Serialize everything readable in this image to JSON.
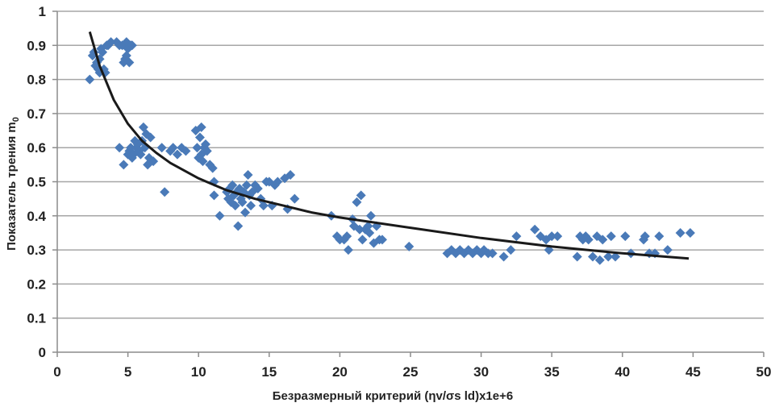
{
  "chart_data": {
    "type": "scatter",
    "title": "",
    "xlabel": "Безразмерный критерий  (ηv/σs ld)x1e+6",
    "ylabel": "Показатель трения m",
    "ylabel_subscript": "0",
    "xlim": [
      0,
      50
    ],
    "ylim": [
      0,
      1
    ],
    "x_ticks": [
      0,
      5,
      10,
      15,
      20,
      25,
      30,
      35,
      40,
      45,
      50
    ],
    "y_ticks": [
      0,
      0.1,
      0.2,
      0.3,
      0.4,
      0.5,
      0.6,
      0.7,
      0.8,
      0.9,
      1
    ],
    "y_tick_labels": [
      "0",
      "0.1",
      "0.2",
      "0.3",
      "0.4",
      "0.5",
      "0.6",
      "0.7",
      "0.8",
      "0.9",
      "1"
    ],
    "x_tick_labels": [
      "0",
      "5",
      "10",
      "15",
      "20",
      "25",
      "30",
      "35",
      "40",
      "45",
      "50"
    ],
    "grid": "horizontal",
    "legend": "none",
    "colors": {
      "marker": "#4a7ab8",
      "trend": "#1a1a1a",
      "grid": "#a6a6a6",
      "axis": "#8c8c8c"
    },
    "series": [
      {
        "name": "data",
        "marker": "diamond",
        "points": [
          [
            2.3,
            0.8
          ],
          [
            2.5,
            0.87
          ],
          [
            2.6,
            0.88
          ],
          [
            2.7,
            0.84
          ],
          [
            2.8,
            0.85
          ],
          [
            2.9,
            0.83
          ],
          [
            3.0,
            0.86
          ],
          [
            3.0,
            0.82
          ],
          [
            3.1,
            0.89
          ],
          [
            3.2,
            0.88
          ],
          [
            3.3,
            0.83
          ],
          [
            3.4,
            0.82
          ],
          [
            3.5,
            0.9
          ],
          [
            3.6,
            0.9
          ],
          [
            3.8,
            0.91
          ],
          [
            4.2,
            0.91
          ],
          [
            4.4,
            0.9
          ],
          [
            4.6,
            0.9
          ],
          [
            4.7,
            0.85
          ],
          [
            4.8,
            0.86
          ],
          [
            4.9,
            0.91
          ],
          [
            5.0,
            0.89
          ],
          [
            5.1,
            0.85
          ],
          [
            5.2,
            0.9
          ],
          [
            5.3,
            0.9
          ],
          [
            4.9,
            0.87
          ],
          [
            4.4,
            0.6
          ],
          [
            4.7,
            0.55
          ],
          [
            5.0,
            0.58
          ],
          [
            5.1,
            0.59
          ],
          [
            5.3,
            0.57
          ],
          [
            5.4,
            0.58
          ],
          [
            5.6,
            0.6
          ],
          [
            5.7,
            0.61
          ],
          [
            5.8,
            0.59
          ],
          [
            5.9,
            0.58
          ],
          [
            6.0,
            0.62
          ],
          [
            6.1,
            0.66
          ],
          [
            6.2,
            0.6
          ],
          [
            6.3,
            0.64
          ],
          [
            6.4,
            0.55
          ],
          [
            6.5,
            0.57
          ],
          [
            6.6,
            0.63
          ],
          [
            6.8,
            0.56
          ],
          [
            5.5,
            0.62
          ],
          [
            5.2,
            0.6
          ],
          [
            7.6,
            0.47
          ],
          [
            7.4,
            0.6
          ],
          [
            8.0,
            0.59
          ],
          [
            8.2,
            0.6
          ],
          [
            8.5,
            0.58
          ],
          [
            8.8,
            0.6
          ],
          [
            9.1,
            0.59
          ],
          [
            9.8,
            0.65
          ],
          [
            10.1,
            0.63
          ],
          [
            10.2,
            0.66
          ],
          [
            9.9,
            0.6
          ],
          [
            10.0,
            0.57
          ],
          [
            10.2,
            0.58
          ],
          [
            10.3,
            0.56
          ],
          [
            10.4,
            0.6
          ],
          [
            10.6,
            0.59
          ],
          [
            10.8,
            0.55
          ],
          [
            11.0,
            0.54
          ],
          [
            10.5,
            0.61
          ],
          [
            11.1,
            0.5
          ],
          [
            11.1,
            0.46
          ],
          [
            11.5,
            0.4
          ],
          [
            12.0,
            0.47
          ],
          [
            12.1,
            0.45
          ],
          [
            12.2,
            0.48
          ],
          [
            12.3,
            0.44
          ],
          [
            12.4,
            0.49
          ],
          [
            12.5,
            0.46
          ],
          [
            12.6,
            0.43
          ],
          [
            12.7,
            0.47
          ],
          [
            12.8,
            0.37
          ],
          [
            12.9,
            0.48
          ],
          [
            13.0,
            0.45
          ],
          [
            13.1,
            0.44
          ],
          [
            13.2,
            0.47
          ],
          [
            13.3,
            0.41
          ],
          [
            13.4,
            0.49
          ],
          [
            13.5,
            0.52
          ],
          [
            13.6,
            0.46
          ],
          [
            13.7,
            0.43
          ],
          [
            13.8,
            0.47
          ],
          [
            14.0,
            0.49
          ],
          [
            14.2,
            0.48
          ],
          [
            14.4,
            0.45
          ],
          [
            14.6,
            0.43
          ],
          [
            14.8,
            0.5
          ],
          [
            15.0,
            0.5
          ],
          [
            15.2,
            0.43
          ],
          [
            15.4,
            0.49
          ],
          [
            15.6,
            0.5
          ],
          [
            16.1,
            0.51
          ],
          [
            16.5,
            0.52
          ],
          [
            16.8,
            0.45
          ],
          [
            16.3,
            0.42
          ],
          [
            19.4,
            0.4
          ],
          [
            19.8,
            0.34
          ],
          [
            20.0,
            0.33
          ],
          [
            20.3,
            0.33
          ],
          [
            20.5,
            0.34
          ],
          [
            20.6,
            0.3
          ],
          [
            20.9,
            0.39
          ],
          [
            21.0,
            0.37
          ],
          [
            21.2,
            0.44
          ],
          [
            21.4,
            0.36
          ],
          [
            21.5,
            0.46
          ],
          [
            21.6,
            0.33
          ],
          [
            21.8,
            0.36
          ],
          [
            22.0,
            0.37
          ],
          [
            22.1,
            0.35
          ],
          [
            22.2,
            0.4
          ],
          [
            22.4,
            0.32
          ],
          [
            22.6,
            0.37
          ],
          [
            22.8,
            0.33
          ],
          [
            23.0,
            0.33
          ],
          [
            24.9,
            0.31
          ],
          [
            27.6,
            0.29
          ],
          [
            27.9,
            0.3
          ],
          [
            28.2,
            0.29
          ],
          [
            28.5,
            0.3
          ],
          [
            28.8,
            0.29
          ],
          [
            29.1,
            0.3
          ],
          [
            29.4,
            0.29
          ],
          [
            29.7,
            0.3
          ],
          [
            30.0,
            0.29
          ],
          [
            30.2,
            0.3
          ],
          [
            30.5,
            0.29
          ],
          [
            30.8,
            0.29
          ],
          [
            31.6,
            0.28
          ],
          [
            32.1,
            0.3
          ],
          [
            32.5,
            0.34
          ],
          [
            33.8,
            0.36
          ],
          [
            34.2,
            0.34
          ],
          [
            34.6,
            0.33
          ],
          [
            34.8,
            0.3
          ],
          [
            35.0,
            0.34
          ],
          [
            35.4,
            0.34
          ],
          [
            36.8,
            0.28
          ],
          [
            37.0,
            0.34
          ],
          [
            37.2,
            0.33
          ],
          [
            37.4,
            0.34
          ],
          [
            37.6,
            0.33
          ],
          [
            37.9,
            0.28
          ],
          [
            38.2,
            0.34
          ],
          [
            38.4,
            0.27
          ],
          [
            38.6,
            0.33
          ],
          [
            39.0,
            0.28
          ],
          [
            39.2,
            0.34
          ],
          [
            39.5,
            0.28
          ],
          [
            40.2,
            0.34
          ],
          [
            40.6,
            0.29
          ],
          [
            41.5,
            0.33
          ],
          [
            41.6,
            0.34
          ],
          [
            41.9,
            0.29
          ],
          [
            42.3,
            0.29
          ],
          [
            42.6,
            0.34
          ],
          [
            43.2,
            0.3
          ],
          [
            44.1,
            0.35
          ],
          [
            44.8,
            0.35
          ]
        ]
      }
    ],
    "trendline": {
      "type": "power",
      "x_range": [
        2.3,
        44.7
      ],
      "points": [
        [
          2.3,
          0.94
        ],
        [
          3,
          0.84
        ],
        [
          4,
          0.74
        ],
        [
          5,
          0.67
        ],
        [
          6,
          0.62
        ],
        [
          7,
          0.585
        ],
        [
          8,
          0.555
        ],
        [
          10,
          0.51
        ],
        [
          12,
          0.475
        ],
        [
          14,
          0.45
        ],
        [
          16,
          0.43
        ],
        [
          18,
          0.41
        ],
        [
          20,
          0.395
        ],
        [
          25,
          0.365
        ],
        [
          30,
          0.335
        ],
        [
          35,
          0.31
        ],
        [
          40,
          0.29
        ],
        [
          44.7,
          0.275
        ]
      ]
    }
  }
}
